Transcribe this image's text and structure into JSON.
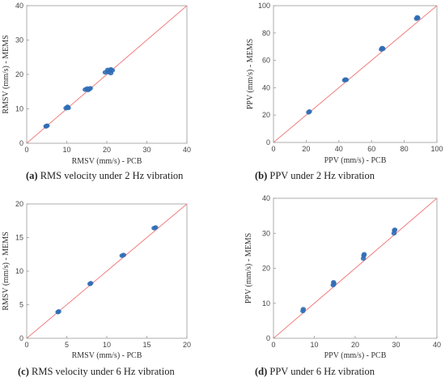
{
  "colors": {
    "points": "#2f6db5",
    "reference_line": "#f08080",
    "axes": "#999999"
  },
  "chart_data": [
    {
      "type": "scatter",
      "panel": "a",
      "caption_label": "(a)",
      "caption_text": "RMS velocity under 2 Hz vibration",
      "xlabel": "RMSV (mm/s) - PCB",
      "ylabel": "RMSV (mm/s) - MEMS",
      "xlim": [
        0,
        40
      ],
      "ylim": [
        0,
        40
      ],
      "xticks": [
        0,
        10,
        20,
        30,
        40
      ],
      "yticks": [
        0,
        10,
        20,
        30,
        40
      ],
      "reference_line": "y = x",
      "points": [
        [
          4.8,
          4.9
        ],
        [
          5.1,
          5.1
        ],
        [
          4.9,
          5.0
        ],
        [
          9.8,
          10.2
        ],
        [
          10.1,
          10.4
        ],
        [
          10.4,
          10.3
        ],
        [
          10.2,
          10.6
        ],
        [
          14.6,
          15.6
        ],
        [
          15.1,
          15.9
        ],
        [
          15.6,
          15.7
        ],
        [
          15.9,
          16.0
        ],
        [
          15.3,
          15.5
        ],
        [
          19.6,
          20.6
        ],
        [
          20.2,
          21.3
        ],
        [
          20.8,
          21.1
        ],
        [
          21.0,
          21.5
        ],
        [
          21.4,
          21.2
        ],
        [
          21.0,
          20.4
        ],
        [
          20.4,
          20.7
        ]
      ]
    },
    {
      "type": "scatter",
      "panel": "b",
      "caption_label": "(b)",
      "caption_text": "PPV under 2 Hz vibration",
      "xlabel": "PPV (mm/s) - PCB",
      "ylabel": "PPV (mm/s) - MEMS",
      "xlim": [
        0,
        100
      ],
      "ylim": [
        0,
        100
      ],
      "xticks": [
        0,
        20,
        40,
        60,
        80,
        100
      ],
      "yticks": [
        0,
        20,
        40,
        60,
        80,
        100
      ],
      "reference_line": "y = x",
      "points": [
        [
          21.5,
          22.0
        ],
        [
          22.0,
          22.6
        ],
        [
          43.5,
          45.5
        ],
        [
          44.0,
          46.0
        ],
        [
          44.5,
          45.8
        ],
        [
          66.0,
          68.0
        ],
        [
          66.5,
          69.0
        ],
        [
          67.0,
          68.5
        ],
        [
          87.5,
          90.5
        ],
        [
          88.0,
          91.5
        ],
        [
          88.3,
          91.0
        ]
      ]
    },
    {
      "type": "scatter",
      "panel": "c",
      "caption_label": "(c)",
      "caption_text": "RMS velocity under 6 Hz vibration",
      "xlabel": "RMSV (mm/s) - PCB",
      "ylabel": "RMSV (mm/s) - MEMS",
      "xlim": [
        0,
        20
      ],
      "ylim": [
        0,
        20
      ],
      "xticks": [
        0,
        5,
        10,
        15,
        20
      ],
      "yticks": [
        0,
        5,
        10,
        15,
        20
      ],
      "reference_line": "y = x",
      "points": [
        [
          3.9,
          3.9
        ],
        [
          4.0,
          4.0
        ],
        [
          7.9,
          8.1
        ],
        [
          8.0,
          8.2
        ],
        [
          11.9,
          12.3
        ],
        [
          12.1,
          12.4
        ],
        [
          15.9,
          16.4
        ],
        [
          16.1,
          16.5
        ]
      ]
    },
    {
      "type": "scatter",
      "panel": "d",
      "caption_label": "(d)",
      "caption_text": "PPV under 6 Hz vibration",
      "xlabel": "PPV (mm/s) - PCB",
      "ylabel": "PPV (mm/s) - MEMS",
      "xlim": [
        0,
        40
      ],
      "ylim": [
        0,
        40
      ],
      "xticks": [
        0,
        10,
        20,
        30,
        40
      ],
      "yticks": [
        0,
        10,
        20,
        30,
        40
      ],
      "reference_line": "y = x",
      "points": [
        [
          7.2,
          7.8
        ],
        [
          7.3,
          8.3
        ],
        [
          14.6,
          15.2
        ],
        [
          14.7,
          16.0
        ],
        [
          14.8,
          15.6
        ],
        [
          22.0,
          22.8
        ],
        [
          22.1,
          23.6
        ],
        [
          22.2,
          24.0
        ],
        [
          29.5,
          30.0
        ],
        [
          29.6,
          30.8
        ],
        [
          29.7,
          31.0
        ]
      ]
    }
  ]
}
